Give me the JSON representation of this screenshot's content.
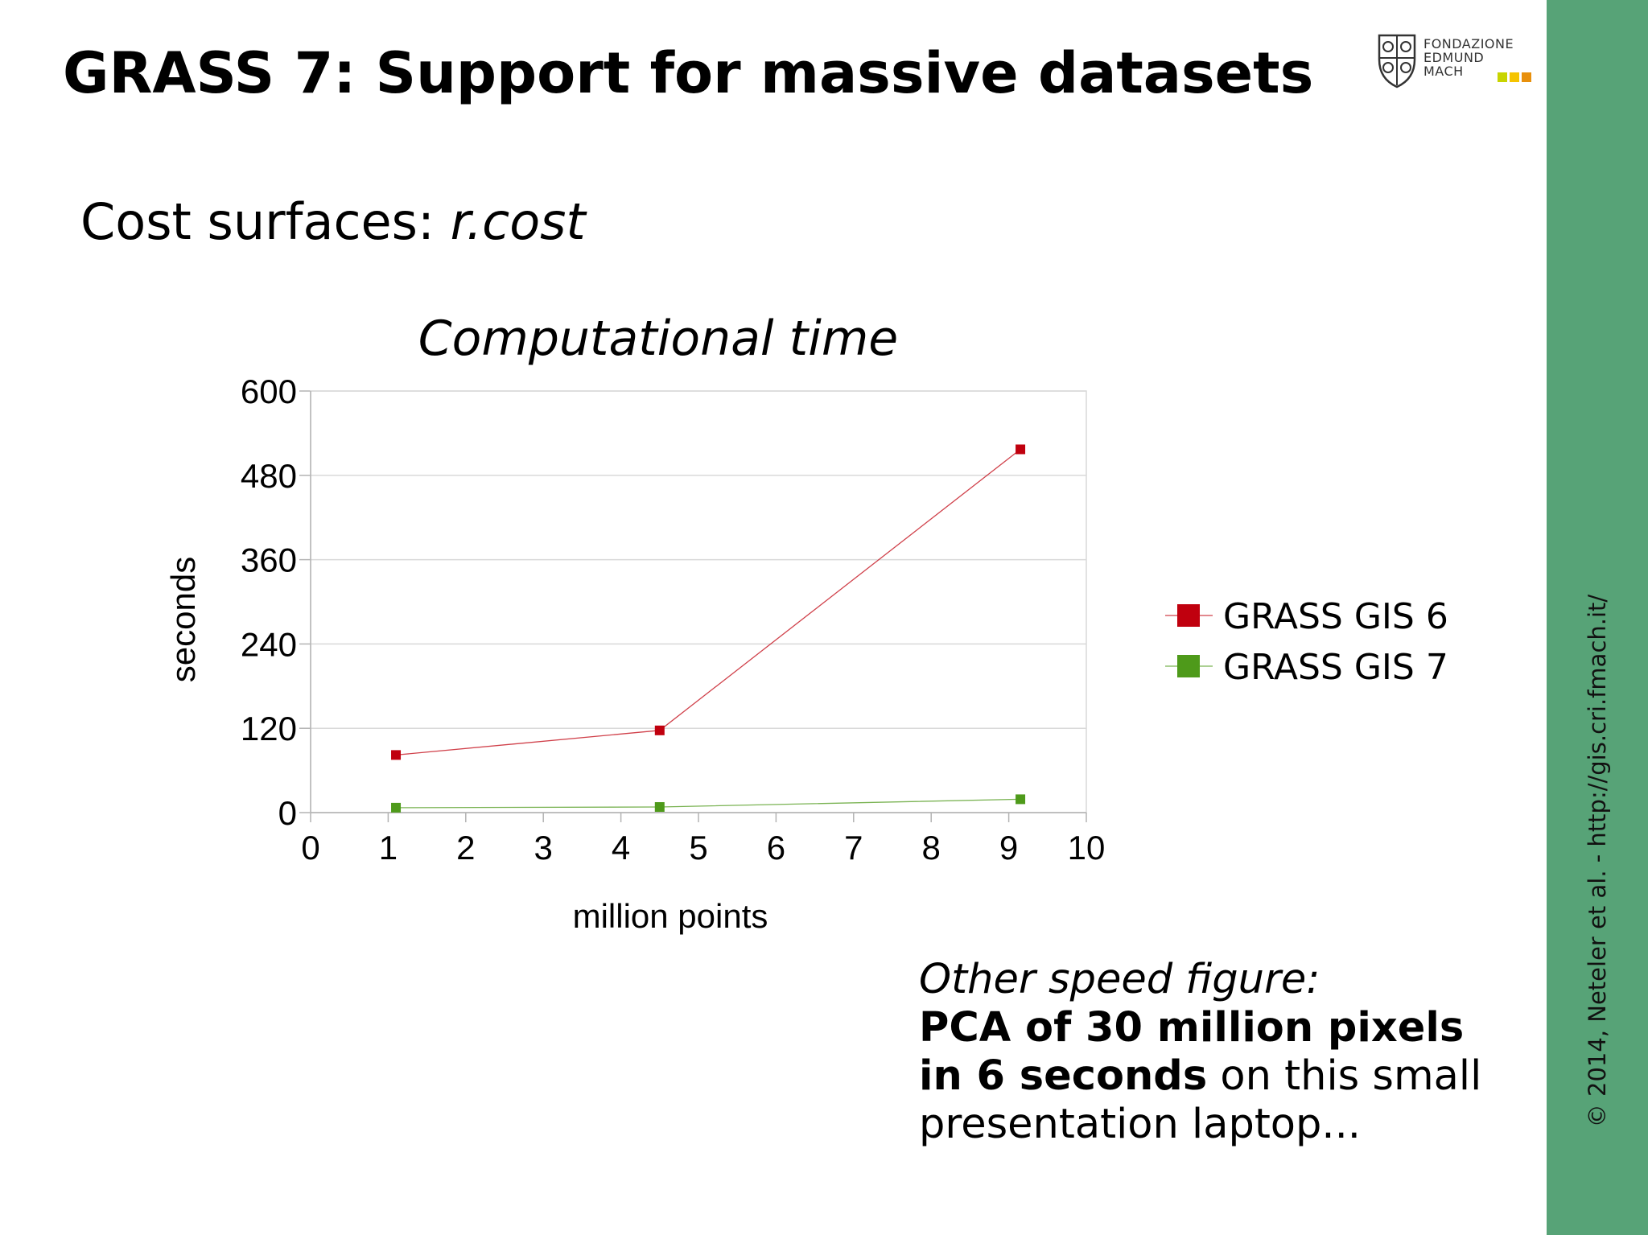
{
  "slide": {
    "title": "GRASS 7: Support for massive datasets",
    "subtitle_prefix": "Cost surfaces: ",
    "subtitle_command": "r.cost"
  },
  "logo": {
    "lines": [
      "FONDAZIONE",
      "EDMUND",
      "MACH"
    ],
    "square_colors": [
      "#c8d400",
      "#f5c400",
      "#e8900c"
    ]
  },
  "side_band": {
    "text": "© 2014, Neteler et al. - http://gis.cri.fmach.it/",
    "color": "#57a377"
  },
  "note": {
    "intro": "Other speed figure:",
    "bold_line1": "PCA of 30 million pixels",
    "bold_line2": "in 6 seconds",
    "rest_line2": " on this small",
    "line3": "presentation laptop..."
  },
  "chart_data": {
    "type": "line",
    "title": "Computational time",
    "xlabel": "million points",
    "ylabel": "seconds",
    "xlim": [
      0,
      10
    ],
    "ylim": [
      0,
      600
    ],
    "xticks": [
      "0",
      "1",
      "2",
      "3",
      "4",
      "5",
      "6",
      "7",
      "8",
      "9",
      "10"
    ],
    "yticks": [
      "0",
      "120",
      "240",
      "360",
      "480",
      "600"
    ],
    "grid": true,
    "legend_position": "right",
    "series": [
      {
        "name": "GRASS GIS 6",
        "color": "#c0000e",
        "points": [
          [
            1.1,
            82
          ],
          [
            4.5,
            117
          ],
          [
            9.15,
            517
          ]
        ]
      },
      {
        "name": "GRASS GIS 7",
        "color": "#4e9a1a",
        "points": [
          [
            1.1,
            7
          ],
          [
            4.5,
            8
          ],
          [
            9.15,
            19
          ]
        ]
      }
    ]
  }
}
